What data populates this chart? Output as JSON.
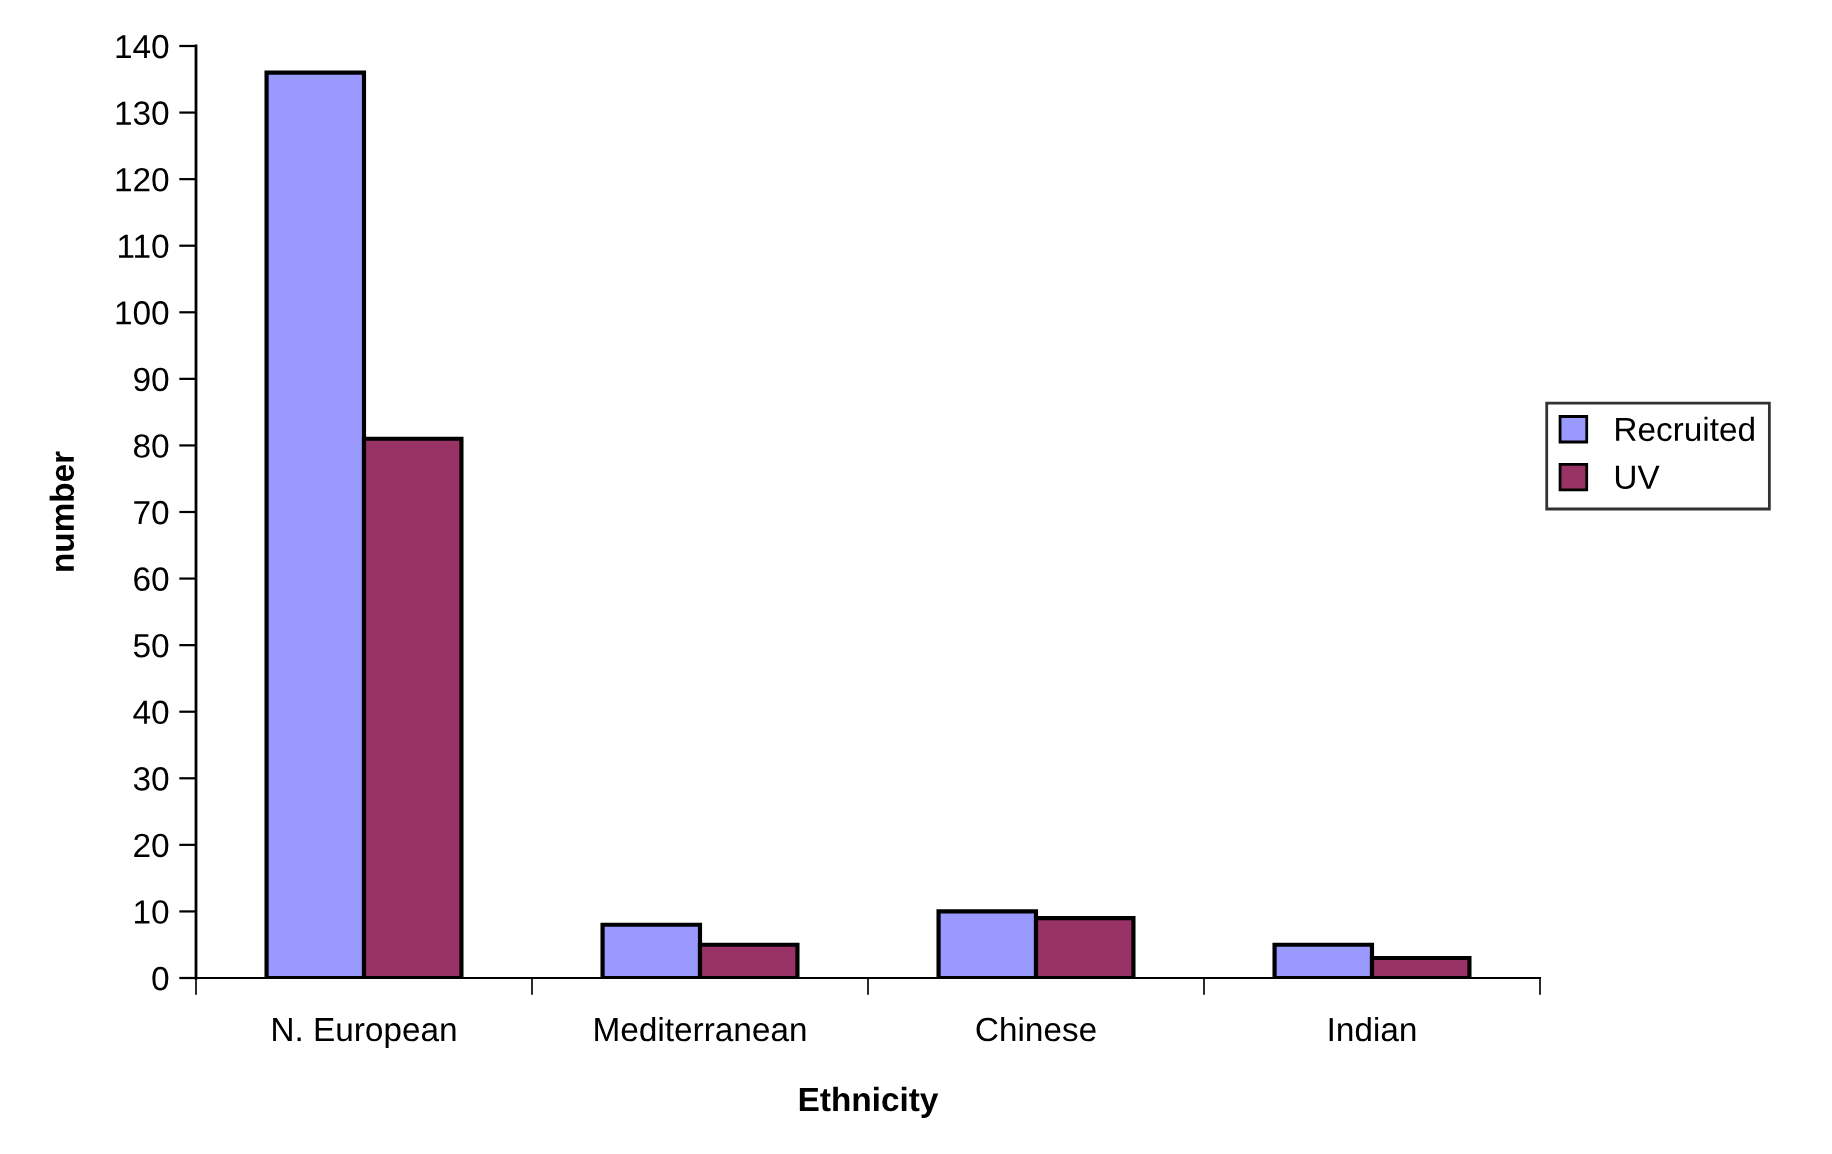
{
  "chart_data": {
    "type": "bar",
    "xlabel": "Ethnicity",
    "ylabel": "number",
    "categories": [
      "N. European",
      "Mediterranean",
      "Chinese",
      "Indian"
    ],
    "series": [
      {
        "name": "Recruited",
        "color": "#9999ff",
        "values": [
          136,
          8,
          10,
          5
        ]
      },
      {
        "name": "UV",
        "color": "#993366",
        "values": [
          81,
          5,
          9,
          3
        ]
      }
    ],
    "ylim": [
      0,
      140
    ],
    "yticks": [
      0,
      10,
      20,
      30,
      40,
      50,
      60,
      70,
      80,
      90,
      100,
      110,
      120,
      130,
      140
    ],
    "grid": false,
    "legend": "right"
  }
}
